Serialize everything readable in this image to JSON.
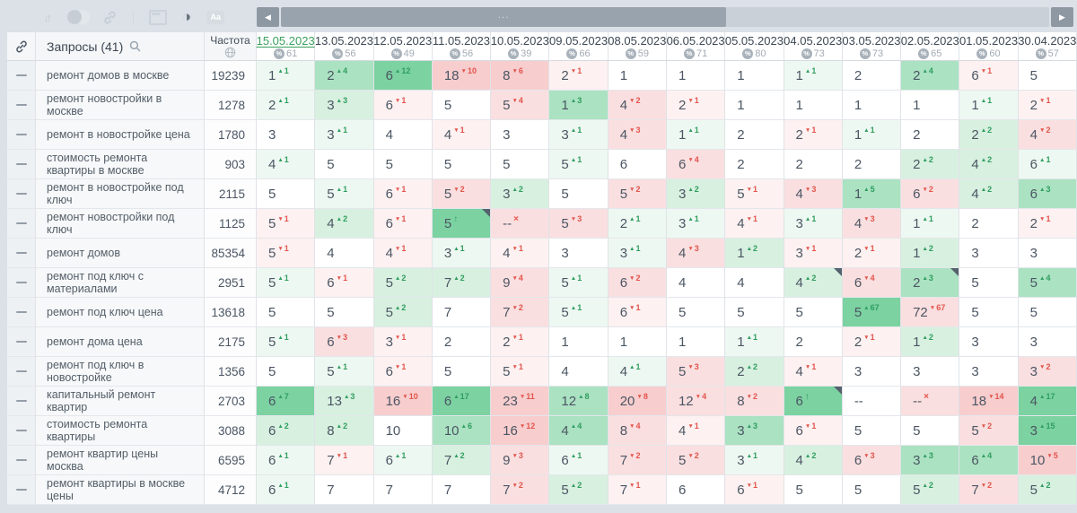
{
  "toolbar": {
    "font_icon_label": "Aa",
    "icon_names": [
      "sort-icon",
      "layers-circles-icon",
      "link-icon",
      "panel-icon",
      "contrast-icon",
      "font-case-icon"
    ]
  },
  "scrollbar": {
    "ellipsis": "..."
  },
  "table": {
    "queries_header": "Запросы (41)",
    "frequency_header": "Частота",
    "dates": [
      {
        "label": "15.05.2023",
        "percent": "61",
        "selected": true
      },
      {
        "label": "13.05.2023",
        "percent": "56"
      },
      {
        "label": "12.05.2023",
        "percent": "49"
      },
      {
        "label": "11.05.2023",
        "percent": "56"
      },
      {
        "label": "10.05.2023",
        "percent": "39"
      },
      {
        "label": "09.05.2023",
        "percent": "66"
      },
      {
        "label": "08.05.2023",
        "percent": "59"
      },
      {
        "label": "06.05.2023",
        "percent": "71"
      },
      {
        "label": "05.05.2023",
        "percent": "80"
      },
      {
        "label": "04.05.2023",
        "percent": "73"
      },
      {
        "label": "03.05.2023",
        "percent": "73"
      },
      {
        "label": "02.05.2023",
        "percent": "65"
      },
      {
        "label": "01.05.2023",
        "percent": "60"
      },
      {
        "label": "30.04.2023",
        "percent": "57"
      }
    ],
    "rows": [
      {
        "keyword": "ремонт домов в москве",
        "frequency": "19239",
        "cells": [
          [
            "1",
            "+1",
            "g1"
          ],
          [
            "2",
            "+4",
            "g3"
          ],
          [
            "6",
            "+12",
            "g4"
          ],
          [
            "18",
            "-10",
            "r3"
          ],
          [
            "8",
            "-6",
            "r3"
          ],
          [
            "2",
            "-1",
            "r1"
          ],
          [
            "1",
            "",
            "w"
          ],
          [
            "1",
            "",
            "w"
          ],
          [
            "1",
            "",
            "w"
          ],
          [
            "1",
            "+1",
            "g1"
          ],
          [
            "2",
            "",
            "w"
          ],
          [
            "2",
            "+4",
            "g3"
          ],
          [
            "6",
            "-1",
            "r1"
          ],
          [
            "5",
            "",
            "w"
          ]
        ]
      },
      {
        "keyword": "ремонт новостройки в москве",
        "frequency": "1278",
        "cells": [
          [
            "2",
            "+1",
            "g1"
          ],
          [
            "3",
            "+3",
            "g2"
          ],
          [
            "6",
            "-1",
            "r1"
          ],
          [
            "5",
            "",
            "w"
          ],
          [
            "5",
            "-4",
            "r2"
          ],
          [
            "1",
            "+3",
            "g3"
          ],
          [
            "4",
            "-2",
            "r2"
          ],
          [
            "2",
            "-1",
            "r1"
          ],
          [
            "1",
            "",
            "w"
          ],
          [
            "1",
            "",
            "w"
          ],
          [
            "1",
            "",
            "w"
          ],
          [
            "1",
            "",
            "w"
          ],
          [
            "1",
            "+1",
            "g1"
          ],
          [
            "2",
            "-1",
            "r1"
          ]
        ]
      },
      {
        "keyword": "ремонт в новостройке цена",
        "frequency": "1780",
        "cells": [
          [
            "3",
            "",
            "w"
          ],
          [
            "3",
            "+1",
            "g1"
          ],
          [
            "4",
            "",
            "w"
          ],
          [
            "4",
            "-1",
            "r1"
          ],
          [
            "3",
            "",
            "w"
          ],
          [
            "3",
            "+1",
            "g1"
          ],
          [
            "4",
            "-3",
            "r2"
          ],
          [
            "1",
            "+1",
            "g1"
          ],
          [
            "2",
            "",
            "w"
          ],
          [
            "2",
            "-1",
            "r1"
          ],
          [
            "1",
            "+1",
            "g1"
          ],
          [
            "2",
            "",
            "w"
          ],
          [
            "2",
            "+2",
            "g2"
          ],
          [
            "4",
            "-2",
            "r2"
          ]
        ]
      },
      {
        "keyword": "стоимость ремонта квартиры в москве",
        "frequency": "903",
        "cells": [
          [
            "4",
            "+1",
            "g1"
          ],
          [
            "5",
            "",
            "w"
          ],
          [
            "5",
            "",
            "w"
          ],
          [
            "5",
            "",
            "w"
          ],
          [
            "5",
            "",
            "w"
          ],
          [
            "5",
            "+1",
            "g1"
          ],
          [
            "6",
            "",
            "w"
          ],
          [
            "6",
            "-4",
            "r2"
          ],
          [
            "2",
            "",
            "w"
          ],
          [
            "2",
            "",
            "w"
          ],
          [
            "2",
            "",
            "w"
          ],
          [
            "2",
            "+2",
            "g2"
          ],
          [
            "4",
            "+2",
            "g2"
          ],
          [
            "6",
            "+1",
            "g1"
          ]
        ]
      },
      {
        "keyword": "ремонт в новостройке под ключ",
        "frequency": "2115",
        "cells": [
          [
            "5",
            "",
            "w"
          ],
          [
            "5",
            "+1",
            "g1"
          ],
          [
            "6",
            "-1",
            "r1"
          ],
          [
            "5",
            "-2",
            "r2"
          ],
          [
            "3",
            "+2",
            "g2"
          ],
          [
            "5",
            "",
            "w"
          ],
          [
            "5",
            "-2",
            "r2"
          ],
          [
            "3",
            "+2",
            "g2"
          ],
          [
            "5",
            "-1",
            "r1"
          ],
          [
            "4",
            "-3",
            "r2"
          ],
          [
            "1",
            "+5",
            "g3"
          ],
          [
            "6",
            "-2",
            "r2"
          ],
          [
            "4",
            "+2",
            "g2"
          ],
          [
            "6",
            "+3",
            "g3"
          ]
        ]
      },
      {
        "keyword": "ремонт новостройки под ключ",
        "frequency": "1125",
        "cells": [
          [
            "5",
            "-1",
            "r1"
          ],
          [
            "4",
            "+2",
            "g2"
          ],
          [
            "6",
            "-1",
            "r1"
          ],
          [
            "5",
            "up",
            "g4",
            "m"
          ],
          [
            "--",
            "x",
            "r2"
          ],
          [
            "5",
            "-3",
            "r2"
          ],
          [
            "2",
            "+1",
            "g1"
          ],
          [
            "3",
            "+1",
            "g1"
          ],
          [
            "4",
            "-1",
            "r1"
          ],
          [
            "3",
            "+1",
            "g1"
          ],
          [
            "4",
            "-3",
            "r2"
          ],
          [
            "1",
            "+1",
            "g1"
          ],
          [
            "2",
            "",
            "w"
          ],
          [
            "2",
            "-1",
            "r1"
          ]
        ]
      },
      {
        "keyword": "ремонт домов",
        "frequency": "85354",
        "cells": [
          [
            "5",
            "-1",
            "r1"
          ],
          [
            "4",
            "",
            "w"
          ],
          [
            "4",
            "-1",
            "r1"
          ],
          [
            "3",
            "+1",
            "g1"
          ],
          [
            "4",
            "-1",
            "r1"
          ],
          [
            "3",
            "",
            "w"
          ],
          [
            "3",
            "+1",
            "g1"
          ],
          [
            "4",
            "-3",
            "r2"
          ],
          [
            "1",
            "+2",
            "g2"
          ],
          [
            "3",
            "-1",
            "r1"
          ],
          [
            "2",
            "-1",
            "r1"
          ],
          [
            "1",
            "+2",
            "g2"
          ],
          [
            "3",
            "",
            "w"
          ],
          [
            "3",
            "",
            "w"
          ]
        ]
      },
      {
        "keyword": "ремонт под ключ с материалами",
        "frequency": "2951",
        "cells": [
          [
            "5",
            "+1",
            "g1"
          ],
          [
            "6",
            "-1",
            "r1"
          ],
          [
            "5",
            "+2",
            "g2"
          ],
          [
            "7",
            "+2",
            "g2"
          ],
          [
            "9",
            "-4",
            "r2"
          ],
          [
            "5",
            "+1",
            "g1"
          ],
          [
            "6",
            "-2",
            "r2"
          ],
          [
            "4",
            "",
            "w"
          ],
          [
            "4",
            "",
            "w"
          ],
          [
            "4",
            "+2",
            "g2",
            "m"
          ],
          [
            "6",
            "-4",
            "r2"
          ],
          [
            "2",
            "+3",
            "g3",
            "m"
          ],
          [
            "5",
            "",
            "w"
          ],
          [
            "5",
            "+4",
            "g3"
          ]
        ]
      },
      {
        "keyword": "ремонт под ключ цена",
        "frequency": "13618",
        "cells": [
          [
            "5",
            "",
            "w"
          ],
          [
            "5",
            "",
            "w"
          ],
          [
            "5",
            "+2",
            "g2"
          ],
          [
            "7",
            "",
            "w"
          ],
          [
            "7",
            "-2",
            "r2"
          ],
          [
            "5",
            "+1",
            "g1"
          ],
          [
            "6",
            "-1",
            "r1"
          ],
          [
            "5",
            "",
            "w"
          ],
          [
            "5",
            "",
            "w"
          ],
          [
            "5",
            "",
            "w"
          ],
          [
            "5",
            "+67",
            "g4"
          ],
          [
            "72",
            "-67",
            "r2"
          ],
          [
            "5",
            "",
            "w"
          ],
          [
            "5",
            "",
            "w"
          ]
        ]
      },
      {
        "keyword": "ремонт дома цена",
        "frequency": "2175",
        "cells": [
          [
            "5",
            "+1",
            "g1"
          ],
          [
            "6",
            "-3",
            "r2"
          ],
          [
            "3",
            "-1",
            "r1"
          ],
          [
            "2",
            "",
            "w"
          ],
          [
            "2",
            "-1",
            "r1"
          ],
          [
            "1",
            "",
            "w"
          ],
          [
            "1",
            "",
            "w"
          ],
          [
            "1",
            "",
            "w"
          ],
          [
            "1",
            "+1",
            "g1"
          ],
          [
            "2",
            "",
            "w"
          ],
          [
            "2",
            "-1",
            "r1"
          ],
          [
            "1",
            "+2",
            "g2"
          ],
          [
            "3",
            "",
            "w"
          ],
          [
            "3",
            "",
            "w"
          ]
        ]
      },
      {
        "keyword": "ремонт под ключ в новостройке",
        "frequency": "1356",
        "cells": [
          [
            "5",
            "",
            "w"
          ],
          [
            "5",
            "+1",
            "g1"
          ],
          [
            "6",
            "-1",
            "r1"
          ],
          [
            "5",
            "",
            "w"
          ],
          [
            "5",
            "-1",
            "r1"
          ],
          [
            "4",
            "",
            "w"
          ],
          [
            "4",
            "+1",
            "g1"
          ],
          [
            "5",
            "-3",
            "r2"
          ],
          [
            "2",
            "+2",
            "g2"
          ],
          [
            "4",
            "-1",
            "r1"
          ],
          [
            "3",
            "",
            "w"
          ],
          [
            "3",
            "",
            "w"
          ],
          [
            "3",
            "",
            "w"
          ],
          [
            "3",
            "-2",
            "r2"
          ]
        ]
      },
      {
        "keyword": "капитальный ремонт квартир",
        "frequency": "2703",
        "cells": [
          [
            "6",
            "+7",
            "g4"
          ],
          [
            "13",
            "+3",
            "g2"
          ],
          [
            "16",
            "-10",
            "r3"
          ],
          [
            "6",
            "+17",
            "g4"
          ],
          [
            "23",
            "-11",
            "r3"
          ],
          [
            "12",
            "+8",
            "g3"
          ],
          [
            "20",
            "-8",
            "r3"
          ],
          [
            "12",
            "-4",
            "r2"
          ],
          [
            "8",
            "-2",
            "r2"
          ],
          [
            "6",
            "up",
            "g4",
            "m"
          ],
          [
            "--",
            "",
            "w"
          ],
          [
            "--",
            "x",
            "r2"
          ],
          [
            "18",
            "-14",
            "r3"
          ],
          [
            "4",
            "+17",
            "g4"
          ]
        ]
      },
      {
        "keyword": "стоимость ремонта квартиры",
        "frequency": "3088",
        "cells": [
          [
            "6",
            "+2",
            "g2"
          ],
          [
            "8",
            "+2",
            "g2"
          ],
          [
            "10",
            "",
            "w"
          ],
          [
            "10",
            "+6",
            "g3"
          ],
          [
            "16",
            "-12",
            "r3"
          ],
          [
            "4",
            "+4",
            "g3"
          ],
          [
            "8",
            "-4",
            "r2"
          ],
          [
            "4",
            "-1",
            "r1"
          ],
          [
            "3",
            "+3",
            "g3"
          ],
          [
            "6",
            "-1",
            "r1"
          ],
          [
            "5",
            "",
            "w"
          ],
          [
            "5",
            "",
            "w"
          ],
          [
            "5",
            "-2",
            "r2"
          ],
          [
            "3",
            "+15",
            "g4"
          ]
        ]
      },
      {
        "keyword": "ремонт квартир цены москва",
        "frequency": "6595",
        "cells": [
          [
            "6",
            "+1",
            "g1"
          ],
          [
            "7",
            "-1",
            "r1"
          ],
          [
            "6",
            "+1",
            "g1"
          ],
          [
            "7",
            "+2",
            "g2"
          ],
          [
            "9",
            "-3",
            "r2"
          ],
          [
            "6",
            "+1",
            "g1"
          ],
          [
            "7",
            "-2",
            "r2"
          ],
          [
            "5",
            "-2",
            "r2"
          ],
          [
            "3",
            "+1",
            "g1"
          ],
          [
            "4",
            "+2",
            "g2"
          ],
          [
            "6",
            "-3",
            "r2"
          ],
          [
            "3",
            "+3",
            "g3"
          ],
          [
            "6",
            "+4",
            "g3"
          ],
          [
            "10",
            "-5",
            "r3"
          ]
        ]
      },
      {
        "keyword": "ремонт квартиры в москве цены",
        "frequency": "4712",
        "cells": [
          [
            "6",
            "+1",
            "g1"
          ],
          [
            "7",
            "",
            "w"
          ],
          [
            "7",
            "",
            "w"
          ],
          [
            "7",
            "",
            "w"
          ],
          [
            "7",
            "-2",
            "r2"
          ],
          [
            "5",
            "+2",
            "g2"
          ],
          [
            "7",
            "-1",
            "r1"
          ],
          [
            "6",
            "",
            "w"
          ],
          [
            "6",
            "-1",
            "r1"
          ],
          [
            "5",
            "",
            "w"
          ],
          [
            "5",
            "",
            "w"
          ],
          [
            "5",
            "+2",
            "g2"
          ],
          [
            "7",
            "-2",
            "r2"
          ],
          [
            "5",
            "+2",
            "g2"
          ]
        ]
      }
    ]
  },
  "colors": {
    "selected_date": "#3ba05e",
    "up_change": "#2f9e5f",
    "down_change": "#e2554c",
    "note_marker": "#55616c"
  }
}
